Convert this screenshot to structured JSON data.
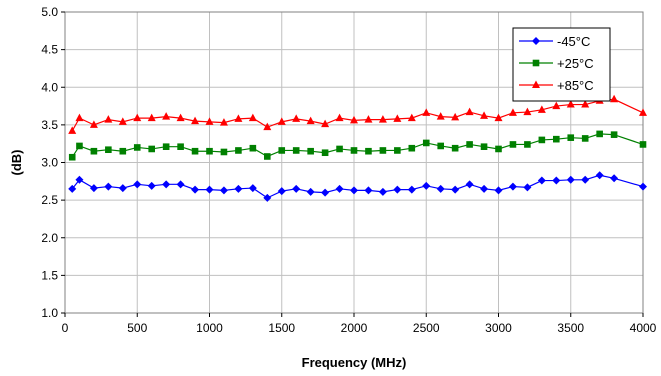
{
  "chart_data": {
    "type": "line",
    "title": "",
    "xlabel": "Frequency (MHz)",
    "ylabel": "(dB)",
    "xlim": [
      0,
      4000
    ],
    "ylim": [
      1.0,
      5.0
    ],
    "xticks": [
      0,
      500,
      1000,
      1500,
      2000,
      2500,
      3000,
      3500,
      4000
    ],
    "yticks": [
      "1.0",
      "1.5",
      "2.0",
      "2.5",
      "3.0",
      "3.5",
      "4.0",
      "4.5",
      "5.0"
    ],
    "grid": true,
    "legend_position": "top-right",
    "x": [
      50,
      100,
      200,
      300,
      400,
      500,
      600,
      700,
      800,
      900,
      1000,
      1100,
      1200,
      1300,
      1400,
      1500,
      1600,
      1700,
      1800,
      1900,
      2000,
      2100,
      2200,
      2300,
      2400,
      2500,
      2600,
      2700,
      2800,
      2900,
      3000,
      3100,
      3200,
      3300,
      3400,
      3500,
      3600,
      3700,
      3800,
      4000
    ],
    "series": [
      {
        "name": "-45°C",
        "color": "#0000ff",
        "marker": "diamond",
        "values": [
          2.65,
          2.77,
          2.66,
          2.68,
          2.66,
          2.71,
          2.69,
          2.71,
          2.71,
          2.64,
          2.64,
          2.63,
          2.65,
          2.66,
          2.53,
          2.62,
          2.65,
          2.61,
          2.6,
          2.65,
          2.63,
          2.63,
          2.61,
          2.64,
          2.64,
          2.69,
          2.65,
          2.64,
          2.71,
          2.65,
          2.63,
          2.68,
          2.67,
          2.76,
          2.76,
          2.77,
          2.77,
          2.83,
          2.79,
          2.68
        ]
      },
      {
        "name": "+25°C",
        "color": "#008000",
        "marker": "square",
        "values": [
          3.07,
          3.22,
          3.15,
          3.17,
          3.15,
          3.2,
          3.18,
          3.21,
          3.21,
          3.15,
          3.15,
          3.14,
          3.16,
          3.19,
          3.08,
          3.16,
          3.16,
          3.15,
          3.13,
          3.18,
          3.16,
          3.15,
          3.16,
          3.16,
          3.19,
          3.26,
          3.22,
          3.19,
          3.24,
          3.21,
          3.18,
          3.24,
          3.24,
          3.3,
          3.31,
          3.33,
          3.32,
          3.38,
          3.37,
          3.24
        ]
      },
      {
        "name": "+85°C",
        "color": "#ff0000",
        "marker": "triangle",
        "values": [
          3.42,
          3.59,
          3.5,
          3.57,
          3.54,
          3.59,
          3.59,
          3.61,
          3.59,
          3.55,
          3.54,
          3.53,
          3.58,
          3.59,
          3.47,
          3.54,
          3.58,
          3.55,
          3.51,
          3.59,
          3.56,
          3.57,
          3.57,
          3.58,
          3.59,
          3.66,
          3.61,
          3.6,
          3.67,
          3.62,
          3.59,
          3.66,
          3.67,
          3.7,
          3.75,
          3.77,
          3.77,
          3.82,
          3.84,
          3.66
        ]
      }
    ]
  }
}
